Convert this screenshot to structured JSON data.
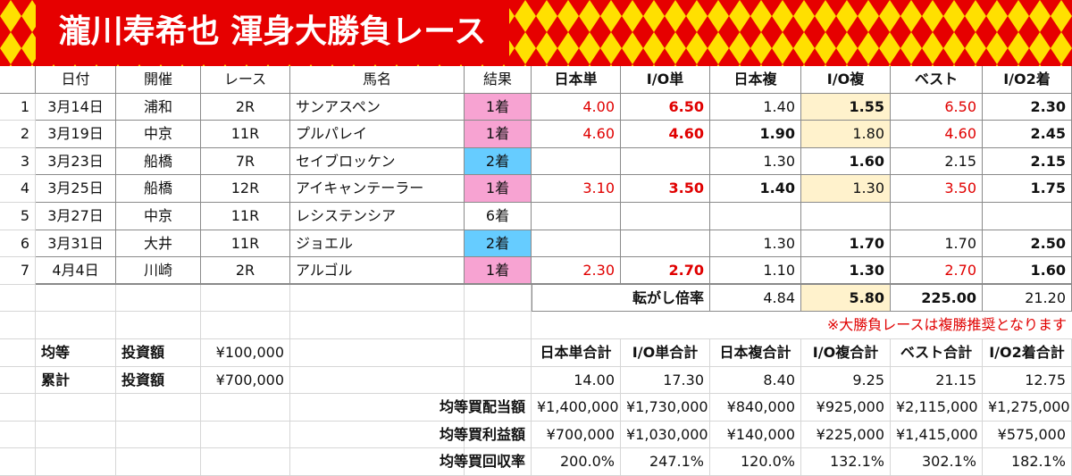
{
  "title": "瀧川寿希也 渾身大勝負レース",
  "headers": [
    "日付",
    "開催",
    "レース",
    "馬名",
    "結果",
    "日本単",
    "I/O単",
    "日本複",
    "I/O複",
    "ベスト",
    "I/O2着"
  ],
  "races": [
    {
      "no": "1",
      "date": "3月14日",
      "venue": "浦和",
      "race": "2R",
      "horse": "サンアスペン",
      "result": "1着",
      "jp_win": "4.00",
      "io_win": "6.50",
      "jp_place": "1.40",
      "io_place": "1.55",
      "best": "6.50",
      "io2": "2.30"
    },
    {
      "no": "2",
      "date": "3月19日",
      "venue": "中京",
      "race": "11R",
      "horse": "プルパレイ",
      "result": "1着",
      "jp_win": "4.60",
      "io_win": "4.60",
      "jp_place": "1.90",
      "io_place": "1.80",
      "best": "4.60",
      "io2": "2.45"
    },
    {
      "no": "3",
      "date": "3月23日",
      "venue": "船橋",
      "race": "7R",
      "horse": "セイブロッケン",
      "result": "2着",
      "jp_place": "1.30",
      "io_place": "1.60",
      "best": "2.15",
      "io2": "2.15"
    },
    {
      "no": "4",
      "date": "3月25日",
      "venue": "船橋",
      "race": "12R",
      "horse": "アイキャンテーラー",
      "result": "1着",
      "jp_win": "3.10",
      "io_win": "3.50",
      "jp_place": "1.40",
      "io_place": "1.30",
      "best": "3.50",
      "io2": "1.75"
    },
    {
      "no": "5",
      "date": "3月27日",
      "venue": "中京",
      "race": "11R",
      "horse": "レシステンシア",
      "result": "6着"
    },
    {
      "no": "6",
      "date": "3月31日",
      "venue": "大井",
      "race": "11R",
      "horse": "ジョエル",
      "result": "2着",
      "jp_place": "1.30",
      "io_place": "1.70",
      "best": "1.70",
      "io2": "2.50"
    },
    {
      "no": "7",
      "date": "4月4日",
      "venue": "川崎",
      "race": "2R",
      "horse": "アルゴル",
      "result": "1着",
      "jp_win": "2.30",
      "io_win": "2.70",
      "jp_place": "1.10",
      "io_place": "1.30",
      "best": "2.70",
      "io2": "1.60"
    }
  ],
  "summary": {
    "label": "転がし倍率",
    "values": [
      "4.84",
      "5.80",
      "225.00",
      "21.20"
    ]
  },
  "note": "※大勝負レースは複勝推奨となります",
  "investment": [
    {
      "label": "均等",
      "sublabel": "投資額",
      "amount": "¥100,000"
    },
    {
      "label": "累計",
      "sublabel": "投資額",
      "amount": "¥700,000"
    }
  ],
  "totals": {
    "headers": [
      "日本単合計",
      "I/O単合計",
      "日本複合計",
      "I/O複合計",
      "ベスト合計",
      "I/O2着合計"
    ],
    "values": [
      "14.00",
      "17.30",
      "8.40",
      "9.25",
      "21.15",
      "12.75"
    ],
    "rows": [
      {
        "label": "均等買配当額",
        "values": [
          "¥1,400,000",
          "¥1,730,000",
          "¥840,000",
          "¥925,000",
          "¥2,115,000",
          "¥1,275,000"
        ]
      },
      {
        "label": "均等買利益額",
        "values": [
          "¥700,000",
          "¥1,030,000",
          "¥140,000",
          "¥225,000",
          "¥1,415,000",
          "¥575,000"
        ]
      },
      {
        "label": "均等買回収率",
        "values": [
          "200.0%",
          "247.1%",
          "120.0%",
          "132.1%",
          "302.1%",
          "182.1%"
        ]
      }
    ]
  }
}
